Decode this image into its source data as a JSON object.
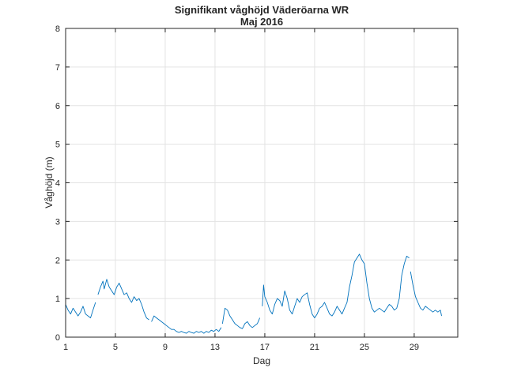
{
  "chart_data": {
    "type": "line",
    "title": "Signifikant våghöjd Väderöarna WR",
    "subtitle": "Maj 2016",
    "xlabel": "Dag",
    "ylabel": "Våghöjd (m)",
    "xlim": [
      1,
      32.5
    ],
    "ylim": [
      0,
      8
    ],
    "xticks": [
      1,
      5,
      9,
      13,
      17,
      21,
      25,
      29
    ],
    "yticks": [
      0,
      1,
      2,
      3,
      4,
      5,
      6,
      7,
      8
    ],
    "grid": true,
    "color": "#0072BD",
    "series": [
      {
        "segments": [
          [
            [
              1.0,
              0.85
            ],
            [
              1.2,
              0.7
            ],
            [
              1.4,
              0.6
            ],
            [
              1.6,
              0.75
            ],
            [
              1.8,
              0.65
            ],
            [
              2.0,
              0.55
            ],
            [
              2.2,
              0.65
            ],
            [
              2.4,
              0.8
            ],
            [
              2.6,
              0.6
            ],
            [
              2.8,
              0.55
            ],
            [
              3.0,
              0.5
            ],
            [
              3.2,
              0.7
            ],
            [
              3.4,
              0.9
            ]
          ],
          [
            [
              3.6,
              1.1
            ],
            [
              3.8,
              1.3
            ],
            [
              4.0,
              1.45
            ],
            [
              4.1,
              1.25
            ],
            [
              4.3,
              1.5
            ],
            [
              4.5,
              1.3
            ],
            [
              4.7,
              1.2
            ],
            [
              4.9,
              1.1
            ],
            [
              5.1,
              1.3
            ],
            [
              5.3,
              1.4
            ],
            [
              5.5,
              1.25
            ],
            [
              5.7,
              1.1
            ],
            [
              5.9,
              1.15
            ],
            [
              6.1,
              1.0
            ],
            [
              6.3,
              0.9
            ],
            [
              6.5,
              1.05
            ],
            [
              6.7,
              0.95
            ],
            [
              6.9,
              1.0
            ],
            [
              7.1,
              0.85
            ],
            [
              7.3,
              0.65
            ],
            [
              7.5,
              0.5
            ],
            [
              7.7,
              0.45
            ]
          ],
          [
            [
              7.9,
              0.4
            ],
            [
              8.1,
              0.55
            ],
            [
              8.3,
              0.5
            ],
            [
              8.5,
              0.45
            ],
            [
              8.7,
              0.4
            ],
            [
              8.9,
              0.35
            ],
            [
              9.1,
              0.3
            ],
            [
              9.3,
              0.25
            ],
            [
              9.5,
              0.2
            ],
            [
              9.7,
              0.2
            ],
            [
              9.9,
              0.15
            ],
            [
              10.1,
              0.12
            ],
            [
              10.3,
              0.15
            ],
            [
              10.5,
              0.12
            ],
            [
              10.7,
              0.1
            ],
            [
              10.9,
              0.15
            ],
            [
              11.1,
              0.12
            ],
            [
              11.3,
              0.1
            ],
            [
              11.5,
              0.15
            ],
            [
              11.7,
              0.12
            ],
            [
              11.9,
              0.15
            ],
            [
              12.1,
              0.1
            ],
            [
              12.3,
              0.15
            ],
            [
              12.5,
              0.12
            ],
            [
              12.7,
              0.18
            ],
            [
              12.9,
              0.15
            ],
            [
              13.1,
              0.2
            ],
            [
              13.3,
              0.15
            ],
            [
              13.5,
              0.25
            ]
          ],
          [
            [
              13.6,
              0.35
            ],
            [
              13.8,
              0.75
            ],
            [
              14.0,
              0.7
            ],
            [
              14.2,
              0.55
            ],
            [
              14.4,
              0.45
            ],
            [
              14.6,
              0.35
            ],
            [
              14.8,
              0.3
            ],
            [
              15.0,
              0.25
            ],
            [
              15.2,
              0.22
            ],
            [
              15.4,
              0.35
            ],
            [
              15.6,
              0.4
            ],
            [
              15.8,
              0.3
            ],
            [
              16.0,
              0.25
            ],
            [
              16.2,
              0.3
            ],
            [
              16.4,
              0.35
            ],
            [
              16.6,
              0.5
            ]
          ],
          [
            [
              16.8,
              0.8
            ],
            [
              16.9,
              1.35
            ],
            [
              17.0,
              1.05
            ],
            [
              17.2,
              0.9
            ],
            [
              17.4,
              0.7
            ],
            [
              17.6,
              0.6
            ],
            [
              17.8,
              0.85
            ],
            [
              18.0,
              1.0
            ],
            [
              18.2,
              0.95
            ],
            [
              18.4,
              0.8
            ],
            [
              18.6,
              1.2
            ],
            [
              18.8,
              1.0
            ],
            [
              19.0,
              0.7
            ],
            [
              19.2,
              0.6
            ],
            [
              19.4,
              0.8
            ],
            [
              19.6,
              1.0
            ],
            [
              19.8,
              0.9
            ],
            [
              20.0,
              1.05
            ],
            [
              20.2,
              1.1
            ],
            [
              20.4,
              1.15
            ],
            [
              20.6,
              0.85
            ],
            [
              20.8,
              0.6
            ],
            [
              21.0,
              0.5
            ],
            [
              21.2,
              0.6
            ],
            [
              21.4,
              0.75
            ],
            [
              21.6,
              0.8
            ],
            [
              21.8,
              0.9
            ],
            [
              22.0,
              0.75
            ],
            [
              22.2,
              0.6
            ],
            [
              22.4,
              0.55
            ],
            [
              22.6,
              0.65
            ],
            [
              22.8,
              0.8
            ],
            [
              23.0,
              0.7
            ],
            [
              23.2,
              0.6
            ],
            [
              23.4,
              0.75
            ],
            [
              23.6,
              0.9
            ],
            [
              23.8,
              1.3
            ],
            [
              24.0,
              1.6
            ],
            [
              24.2,
              1.95
            ],
            [
              24.4,
              2.05
            ],
            [
              24.6,
              2.15
            ],
            [
              24.8,
              2.0
            ],
            [
              25.0,
              1.9
            ],
            [
              25.2,
              1.4
            ],
            [
              25.4,
              1.0
            ],
            [
              25.6,
              0.75
            ],
            [
              25.8,
              0.65
            ],
            [
              26.0,
              0.7
            ],
            [
              26.2,
              0.75
            ],
            [
              26.4,
              0.7
            ],
            [
              26.6,
              0.65
            ],
            [
              26.8,
              0.75
            ],
            [
              27.0,
              0.85
            ],
            [
              27.2,
              0.8
            ],
            [
              27.4,
              0.7
            ],
            [
              27.6,
              0.75
            ],
            [
              27.8,
              1.0
            ],
            [
              28.0,
              1.6
            ],
            [
              28.2,
              1.9
            ],
            [
              28.4,
              2.1
            ],
            [
              28.6,
              2.05
            ]
          ],
          [
            [
              28.7,
              1.7
            ],
            [
              28.9,
              1.35
            ],
            [
              29.1,
              1.05
            ],
            [
              29.3,
              0.9
            ],
            [
              29.5,
              0.75
            ],
            [
              29.7,
              0.7
            ],
            [
              29.9,
              0.8
            ],
            [
              30.1,
              0.75
            ],
            [
              30.3,
              0.7
            ],
            [
              30.5,
              0.65
            ],
            [
              30.7,
              0.7
            ],
            [
              30.9,
              0.65
            ],
            [
              31.1,
              0.7
            ],
            [
              31.2,
              0.55
            ]
          ]
        ]
      }
    ]
  }
}
